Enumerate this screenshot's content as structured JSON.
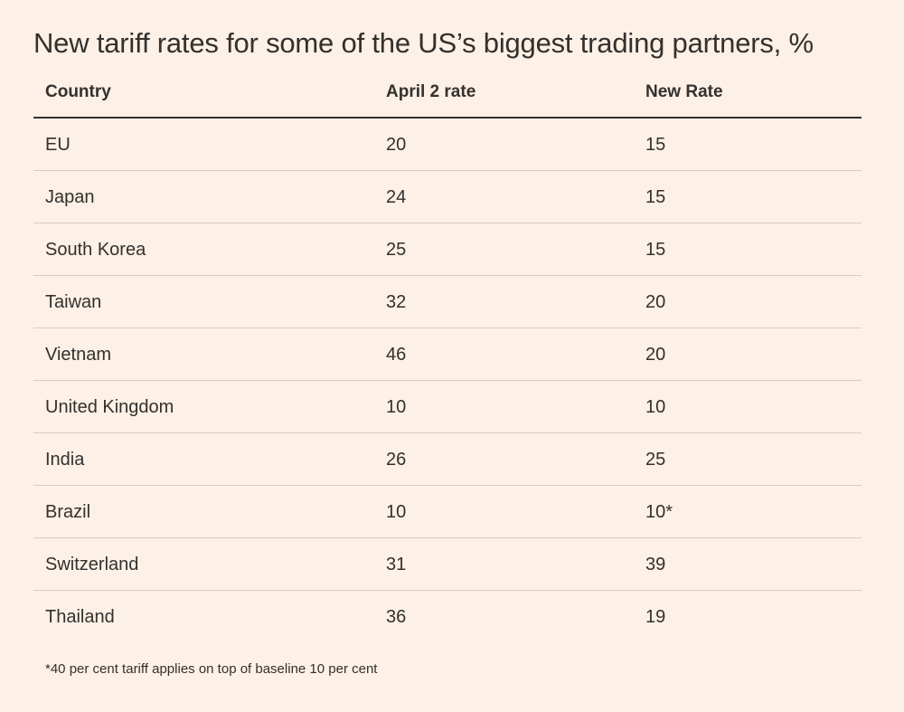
{
  "title": "New tariff rates for some of the US’s biggest trading partners, %",
  "chart_data": {
    "type": "table",
    "title": "New tariff rates for some of the US’s biggest trading partners, %",
    "columns": [
      "Country",
      "April 2 rate",
      "New Rate"
    ],
    "rows": [
      [
        "EU",
        "20",
        "15"
      ],
      [
        "Japan",
        "24",
        "15"
      ],
      [
        "South Korea",
        "25",
        "15"
      ],
      [
        "Taiwan",
        "32",
        "20"
      ],
      [
        "Vietnam",
        "46",
        "20"
      ],
      [
        "United Kingdom",
        "10",
        "10"
      ],
      [
        "India",
        "26",
        "25"
      ],
      [
        "Brazil",
        "10",
        "10*"
      ],
      [
        "Switzerland",
        "31",
        "39"
      ],
      [
        "Thailand",
        "36",
        "19"
      ]
    ],
    "footnote": "*40 per cent tariff applies on top of baseline 10 per cent"
  },
  "colors": {
    "background": "#fdf0e6",
    "text": "#33302e",
    "rule": "#33302e",
    "divider": "#d8cdc4"
  }
}
